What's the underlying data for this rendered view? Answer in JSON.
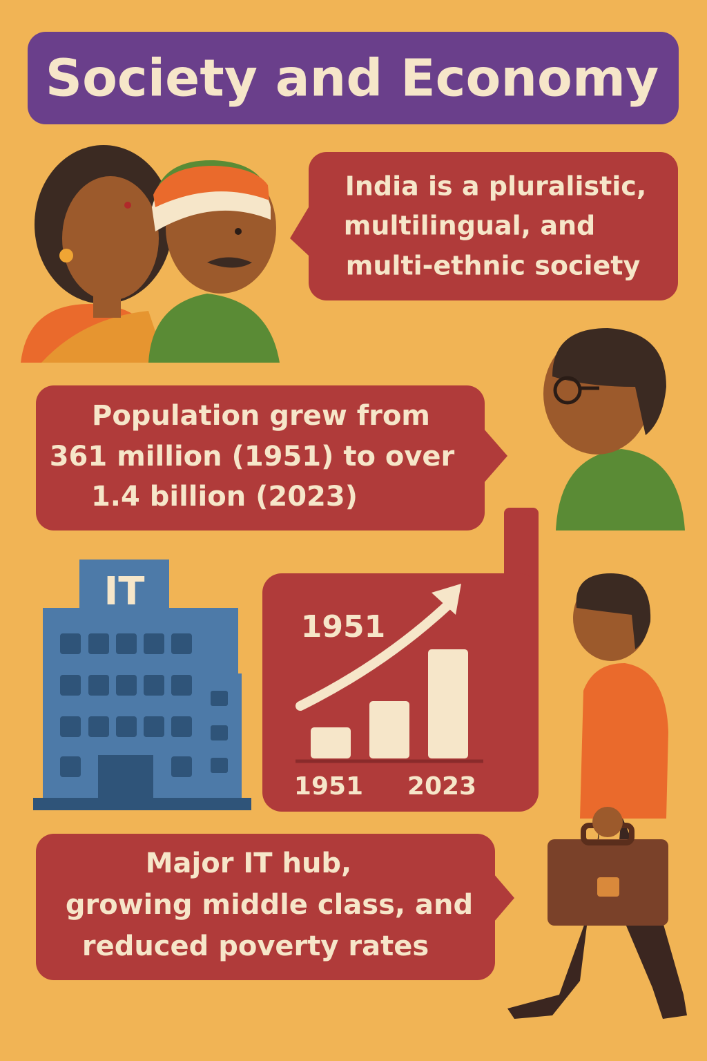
{
  "header": {
    "title": "Society and Economy"
  },
  "bubbles": [
    {
      "lines": [
        "India is a pluralistic,",
        "multilingual, and",
        "multi-ethnic society"
      ]
    },
    {
      "lines": [
        "Population grew from",
        "361 million (1951) to over",
        "1.4 billion (2023)"
      ]
    },
    {
      "lines": [
        "Major IT hub,",
        "growing middle class, and",
        "reduced poverty rates"
      ]
    }
  ],
  "building": {
    "sign": "IT"
  },
  "growth_card": {
    "label": "1951",
    "x_labels": [
      "1951",
      "2023"
    ]
  }
}
